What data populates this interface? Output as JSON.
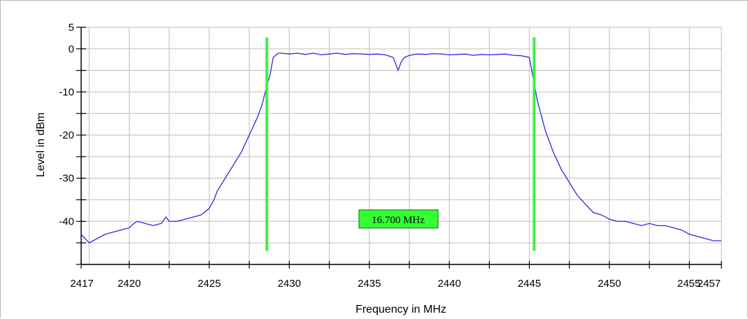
{
  "chart_data": {
    "type": "line",
    "xlabel": "Frequency in MHz",
    "ylabel": "Level in dBm",
    "xlim": [
      2417,
      2457
    ],
    "ylim": [
      -50,
      5
    ],
    "x_tick_values": [
      2417,
      2420,
      2425,
      2430,
      2435,
      2440,
      2445,
      2450,
      2455,
      2457
    ],
    "x_tick_labels": [
      "2417",
      "2420",
      "2425",
      "2430",
      "2435",
      "2440",
      "2445",
      "2450",
      "2455",
      "2457"
    ],
    "y_tick_values": [
      5,
      0,
      -10,
      -20,
      -30,
      -40
    ],
    "y_tick_labels": [
      "5",
      "0",
      "-10",
      "-20",
      "-30",
      "-40"
    ],
    "grid": true,
    "series": [
      {
        "color": "#2b2bd8",
        "x": [
          2417,
          2417.5,
          2418,
          2418.5,
          2419,
          2419.5,
          2420,
          2420.3,
          2420.5,
          2421,
          2421.5,
          2422,
          2422.3,
          2422.5,
          2423,
          2423.5,
          2424,
          2424.5,
          2425,
          2425.3,
          2425.5,
          2426,
          2426.5,
          2427,
          2427.5,
          2428,
          2428.3,
          2428.5,
          2428.8,
          2429,
          2429.3,
          2429.5,
          2430,
          2430.5,
          2431,
          2431.5,
          2432,
          2432.5,
          2433,
          2433.5,
          2434,
          2434.5,
          2435,
          2435.5,
          2436,
          2436.5,
          2436.8,
          2437,
          2437.2,
          2437.5,
          2438,
          2438.5,
          2439,
          2439.5,
          2440,
          2440.5,
          2441,
          2441.5,
          2442,
          2442.5,
          2443,
          2443.5,
          2444,
          2444.5,
          2445,
          2445.3,
          2445.5,
          2446,
          2446.5,
          2447,
          2447.5,
          2448,
          2448.5,
          2449,
          2449.5,
          2450,
          2450.5,
          2451,
          2451.5,
          2452,
          2452.5,
          2453,
          2453.5,
          2454,
          2454.5,
          2455,
          2455.5,
          2456,
          2456.5,
          2457
        ],
        "y": [
          -43,
          -45,
          -44,
          -43,
          -42.5,
          -42,
          -41.5,
          -40.5,
          -40,
          -40.5,
          -41,
          -40.5,
          -39,
          -40,
          -40,
          -39.5,
          -39,
          -38.5,
          -37,
          -35,
          -33,
          -30,
          -27,
          -24,
          -20,
          -16,
          -13,
          -10,
          -6,
          -2,
          -1,
          -1,
          -1.2,
          -1,
          -1.3,
          -1,
          -1.4,
          -1.2,
          -1,
          -1.3,
          -1.1,
          -1.2,
          -1.3,
          -1.2,
          -1.4,
          -2,
          -5,
          -3,
          -2,
          -1.5,
          -1.2,
          -1.3,
          -1.1,
          -1.2,
          -1.4,
          -1.3,
          -1.2,
          -1.5,
          -1.3,
          -1.4,
          -1.3,
          -1.2,
          -1.5,
          -1.6,
          -2,
          -8,
          -12,
          -19,
          -24,
          -28,
          -31,
          -34,
          -36,
          -38,
          -38.5,
          -39.5,
          -40,
          -40,
          -40.5,
          -41,
          -40.5,
          -41,
          -41,
          -41.5,
          -42,
          -43,
          -43.5,
          -44,
          -44.5,
          -44.5
        ]
      }
    ],
    "markers": {
      "x": [
        2428.6,
        2445.3
      ],
      "color": "#44ee44",
      "label": "16.700 MHz",
      "label_color": "#33ff33"
    }
  }
}
